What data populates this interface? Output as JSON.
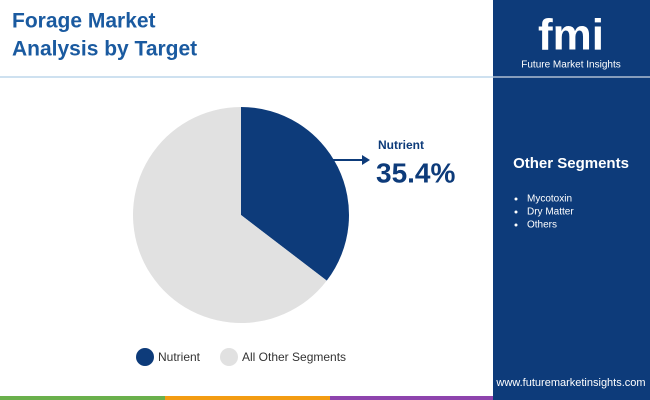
{
  "chart_data": {
    "type": "pie",
    "title": "Forage Market Analysis by Target",
    "categories": [
      "Nutrient",
      "All Other Segments"
    ],
    "values": [
      35.4,
      64.6
    ],
    "value_labels": [
      "35.4%",
      null
    ],
    "colors": [
      "#0d3b7a",
      "#e1e1e1"
    ]
  },
  "sidebar": {
    "logo": "fmi",
    "brand": "Future Market Insights",
    "other_segments_title": "Other Segments",
    "other_segments": [
      "Mycotoxin",
      "Dry Matter",
      "Others"
    ],
    "url": "www.futuremarketinsights.com"
  }
}
